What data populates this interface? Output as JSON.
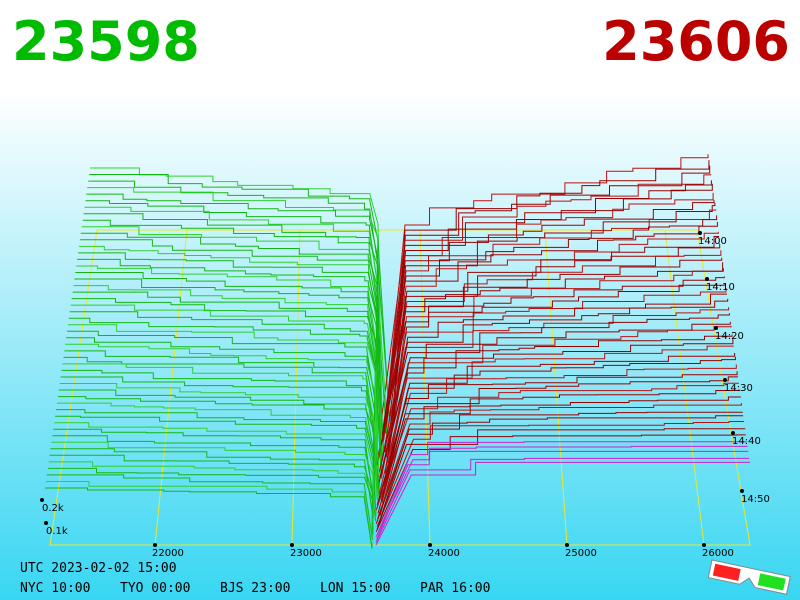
{
  "header": {
    "bid": "23598",
    "ask": "23606"
  },
  "price_axis": {
    "labels": [
      "22000",
      "23000",
      "24000",
      "25000",
      "26000"
    ]
  },
  "depth_axis": {
    "labels": [
      "0.2k",
      "0.1k"
    ]
  },
  "time_axis": {
    "labels": [
      "14:00",
      "14:10",
      "14:20",
      "14:30",
      "14:40",
      "14:50"
    ]
  },
  "footer": {
    "utc": "UTC 2023-02-02 15:00",
    "cities": [
      "NYC 10:00",
      "TYO 00:00",
      "BJS 23:00",
      "LON 15:00",
      "PAR 16:00"
    ]
  }
}
